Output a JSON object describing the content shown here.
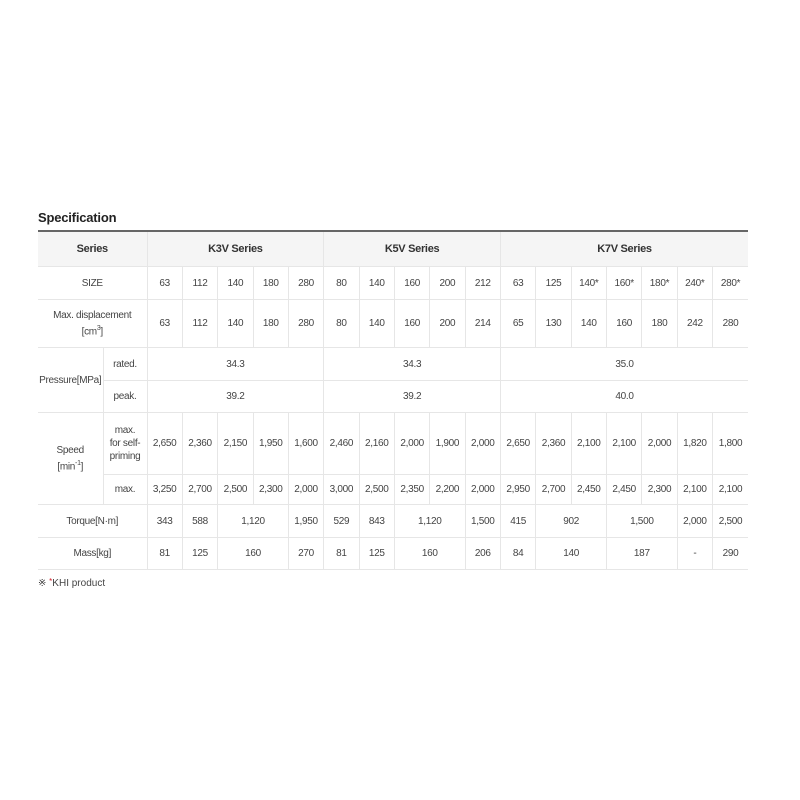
{
  "title": "Specification",
  "header": {
    "series_label": "Series",
    "groups": [
      {
        "label": "K3V Series",
        "span": 5
      },
      {
        "label": "K5V Series",
        "span": 5
      },
      {
        "label": "K7V Series",
        "span": 7
      }
    ]
  },
  "rows": [
    {
      "label": "SIZE",
      "height": 33,
      "cells": [
        {
          "v": "63"
        },
        {
          "v": "112"
        },
        {
          "v": "140"
        },
        {
          "v": "180"
        },
        {
          "v": "280"
        },
        {
          "v": "80"
        },
        {
          "v": "140"
        },
        {
          "v": "160"
        },
        {
          "v": "200"
        },
        {
          "v": "212"
        },
        {
          "v": "63"
        },
        {
          "v": "125"
        },
        {
          "v": "140*"
        },
        {
          "v": "160*"
        },
        {
          "v": "180*"
        },
        {
          "v": "240*"
        },
        {
          "v": "280*"
        }
      ]
    },
    {
      "label": "Max. displacement",
      "label_unit": "[cm",
      "label_sup": "3",
      "label_end": "]",
      "height": 48,
      "cells": [
        {
          "v": "63"
        },
        {
          "v": "112"
        },
        {
          "v": "140"
        },
        {
          "v": "180"
        },
        {
          "v": "280"
        },
        {
          "v": "80"
        },
        {
          "v": "140"
        },
        {
          "v": "160"
        },
        {
          "v": "200"
        },
        {
          "v": "214"
        },
        {
          "v": "65"
        },
        {
          "v": "130"
        },
        {
          "v": "140"
        },
        {
          "v": "160"
        },
        {
          "v": "180"
        },
        {
          "v": "242"
        },
        {
          "v": "280"
        }
      ]
    },
    {
      "group": "Pressure[MPa]",
      "group_span": 2,
      "sub": "rated.",
      "height": 33,
      "cells": [
        {
          "v": "34.3",
          "span": 5
        },
        {
          "v": "34.3",
          "span": 5
        },
        {
          "v": "35.0",
          "span": 7
        }
      ]
    },
    {
      "sub": "peak.",
      "height": 32,
      "cells": [
        {
          "v": "39.2",
          "span": 5
        },
        {
          "v": "39.2",
          "span": 5
        },
        {
          "v": "40.0",
          "span": 7
        }
      ]
    },
    {
      "group": "Speed",
      "group_unit": "[min",
      "group_sup": "-1",
      "group_end": "]",
      "group_span": 2,
      "sub": "max. for self-priming",
      "height": 62,
      "cells": [
        {
          "v": "2,650"
        },
        {
          "v": "2,360"
        },
        {
          "v": "2,150"
        },
        {
          "v": "1,950"
        },
        {
          "v": "1,600"
        },
        {
          "v": "2,460"
        },
        {
          "v": "2,160"
        },
        {
          "v": "2,000"
        },
        {
          "v": "1,900"
        },
        {
          "v": "2,000"
        },
        {
          "v": "2,650"
        },
        {
          "v": "2,360"
        },
        {
          "v": "2,100"
        },
        {
          "v": "2,100"
        },
        {
          "v": "2,000"
        },
        {
          "v": "1,820"
        },
        {
          "v": "1,800"
        }
      ]
    },
    {
      "sub": "max.",
      "height": 30,
      "cells": [
        {
          "v": "3,250"
        },
        {
          "v": "2,700"
        },
        {
          "v": "2,500"
        },
        {
          "v": "2,300"
        },
        {
          "v": "2,000"
        },
        {
          "v": "3,000"
        },
        {
          "v": "2,500"
        },
        {
          "v": "2,350"
        },
        {
          "v": "2,200"
        },
        {
          "v": "2,000"
        },
        {
          "v": "2,950"
        },
        {
          "v": "2,700"
        },
        {
          "v": "2,450"
        },
        {
          "v": "2,450"
        },
        {
          "v": "2,300"
        },
        {
          "v": "2,100"
        },
        {
          "v": "2,100"
        }
      ]
    },
    {
      "label": "Torque[N·m]",
      "height": 33,
      "cells": [
        {
          "v": "343"
        },
        {
          "v": "588"
        },
        {
          "v": "1,120",
          "span": 2
        },
        {
          "v": "1,950"
        },
        {
          "v": "529"
        },
        {
          "v": "843"
        },
        {
          "v": "1,120",
          "span": 2
        },
        {
          "v": "1,500"
        },
        {
          "v": "415"
        },
        {
          "v": "902",
          "span": 2
        },
        {
          "v": "1,500",
          "span": 2
        },
        {
          "v": "2,000"
        },
        {
          "v": "2,500"
        }
      ]
    },
    {
      "label": "Mass[kg]",
      "height": 32,
      "cells": [
        {
          "v": "81"
        },
        {
          "v": "125"
        },
        {
          "v": "160",
          "span": 2
        },
        {
          "v": "270"
        },
        {
          "v": "81"
        },
        {
          "v": "125"
        },
        {
          "v": "160",
          "span": 2
        },
        {
          "v": "206"
        },
        {
          "v": "84"
        },
        {
          "v": "140",
          "span": 2
        },
        {
          "v": "187",
          "span": 2
        },
        {
          "v": "-"
        },
        {
          "v": "290"
        }
      ]
    }
  ],
  "footnote": {
    "mark": "※",
    "star": "*",
    "text": "KHI product"
  },
  "colors": {
    "accent_star": "#d0202a",
    "header_bg": "#f5f5f5"
  }
}
